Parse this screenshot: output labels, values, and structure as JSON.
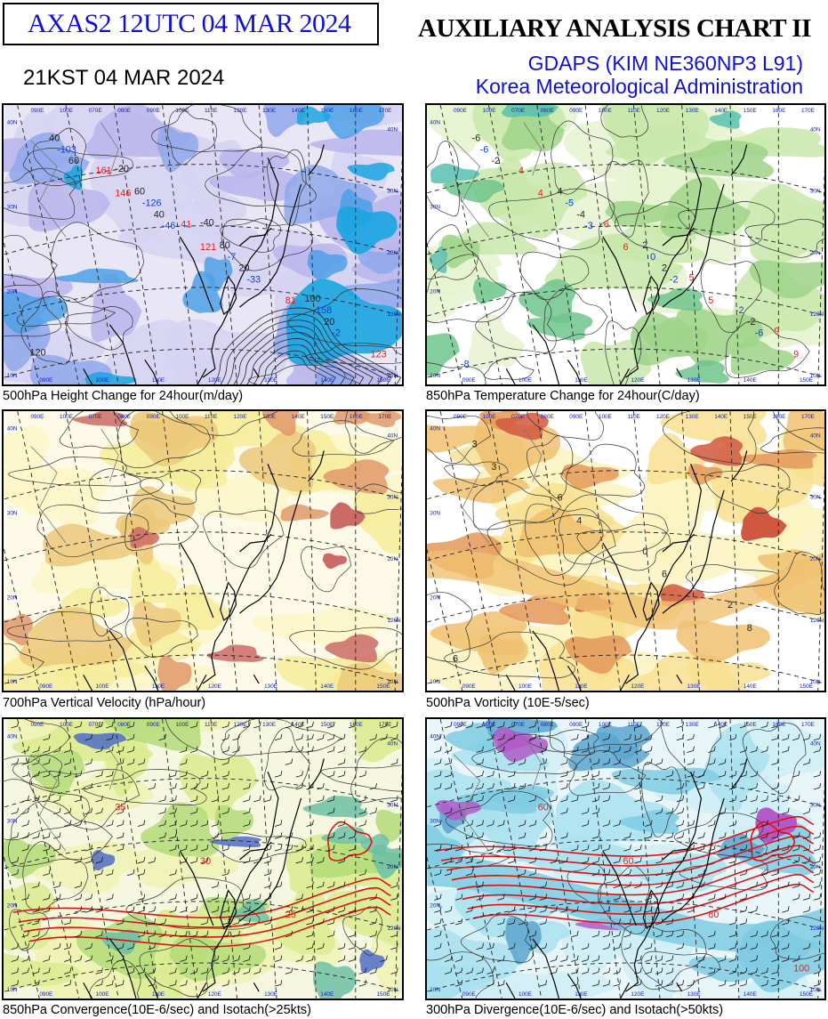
{
  "header": {
    "product_stamp": "AXAS2  12UTC 04 MAR 2024",
    "local_time": "21KST 04 MAR 2024",
    "title": "AUXILIARY ANALYSIS CHART II",
    "model": "GDAPS (KIM NE360NP3 L91)",
    "agency": "Korea Meteorological Administration"
  },
  "panels": [
    {
      "id": "p1",
      "caption": "500hPa Height Change for 24hour(m/day)",
      "scheme": "height",
      "labels_dark": [
        "60",
        "40",
        "20",
        "20",
        "40",
        "60",
        "80",
        "100",
        "120",
        "-20",
        "-40"
      ],
      "labels_red": [
        "146",
        "121",
        "81",
        "123",
        "161",
        "41"
      ],
      "labels_blue": [
        "-46",
        "-33",
        "-2",
        "-103",
        "-126",
        "-7",
        "-158"
      ]
    },
    {
      "id": "p2",
      "caption": "850hPa Temperature Change for 24hour(C/day)",
      "scheme": "temp",
      "labels_dark": [
        "-2",
        "-4",
        "2",
        "-2",
        "-6",
        "4",
        "2"
      ],
      "labels_red": [
        "4",
        "6",
        "5",
        "9",
        "4",
        "6",
        "5",
        "9"
      ],
      "labels_blue": [
        "-3",
        "-2",
        "-6",
        "-6",
        "-5",
        "0",
        "-2",
        "-8"
      ]
    },
    {
      "id": "p3",
      "caption": "700hPa Vertical Velocity (hPa/hour)",
      "scheme": "vv",
      "labels_dark": [],
      "labels_red": [],
      "labels_blue": []
    },
    {
      "id": "p4",
      "caption": "500hPa Vorticity (10E-5/sec)",
      "scheme": "vort",
      "labels_dark": [
        "3",
        "4",
        "6",
        "8",
        "3",
        "6",
        "0",
        "2",
        "6"
      ],
      "labels_red": [],
      "labels_blue": []
    },
    {
      "id": "p5",
      "caption": "850hPa Convergence(10E-6/sec) and Isotach(>25kts)",
      "scheme": "conv",
      "labels_dark": [],
      "labels_red": [
        "35",
        "30",
        "25"
      ],
      "labels_blue": []
    },
    {
      "id": "p6",
      "caption": "300hPa Divergence(10E-6/sec) and Isotach(>50kts)",
      "scheme": "div",
      "labels_dark": [],
      "labels_red": [
        "60",
        "60",
        "80",
        "100"
      ],
      "labels_blue": []
    }
  ],
  "map_axes": {
    "lon_top": [
      "090E",
      "100E",
      "070E",
      "080E",
      "090E",
      "100E",
      "110E",
      "120E",
      "130E",
      "140E",
      "150E",
      "160E",
      "170E"
    ],
    "lon_bottom": [
      "090E",
      "100E",
      "110E",
      "120E",
      "130E",
      "140E",
      "150E"
    ],
    "lat_left": [
      "40N",
      "30N",
      "20N",
      "10N"
    ],
    "lat_right": [
      "40N",
      "30N",
      "20N",
      "120N",
      "10N"
    ]
  },
  "colors": {
    "stamp_text": "#1010d0",
    "frame": "#000000",
    "contour": "#333333",
    "positive_label": "#e02020",
    "negative_label": "#1040d0",
    "isotach": "#e01010"
  }
}
